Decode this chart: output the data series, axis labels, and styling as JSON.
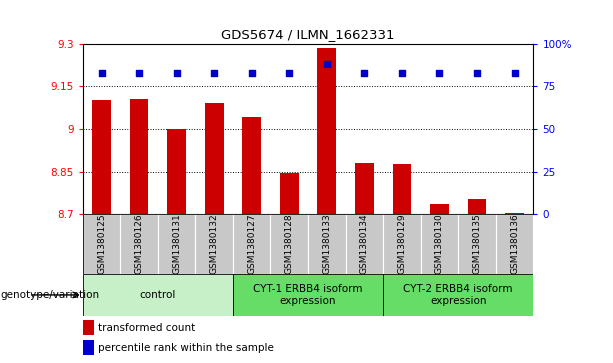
{
  "title": "GDS5674 / ILMN_1662331",
  "samples": [
    "GSM1380125",
    "GSM1380126",
    "GSM1380131",
    "GSM1380132",
    "GSM1380127",
    "GSM1380128",
    "GSM1380133",
    "GSM1380134",
    "GSM1380129",
    "GSM1380130",
    "GSM1380135",
    "GSM1380136"
  ],
  "bar_values": [
    9.1,
    9.105,
    9.0,
    9.09,
    9.04,
    8.845,
    9.285,
    8.88,
    8.875,
    8.735,
    8.755,
    8.705
  ],
  "percentile_values": [
    83,
    83,
    83,
    83,
    83,
    83,
    88,
    83,
    83,
    83,
    83,
    83
  ],
  "ymin": 8.7,
  "ymax": 9.3,
  "yticks": [
    8.7,
    8.85,
    9.0,
    9.15,
    9.3
  ],
  "ytick_labels": [
    "8.7",
    "8.85",
    "9",
    "9.15",
    "9.3"
  ],
  "right_yticks": [
    0,
    25,
    50,
    75,
    100
  ],
  "right_ytick_labels": [
    "0",
    "25",
    "50",
    "75",
    "100%"
  ],
  "bar_color": "#cc0000",
  "percentile_color": "#0000cc",
  "grid_color": "#000000",
  "background_color": "#ffffff",
  "tick_area_color": "#c8c8c8",
  "groups": [
    {
      "label": "control",
      "start": 0,
      "end": 3,
      "color": "#c8f0c8"
    },
    {
      "label": "CYT-1 ERBB4 isoform\nexpression",
      "start": 4,
      "end": 7,
      "color": "#66dd66"
    },
    {
      "label": "CYT-2 ERBB4 isoform\nexpression",
      "start": 8,
      "end": 11,
      "color": "#66dd66"
    }
  ],
  "legend_items": [
    {
      "label": "transformed count",
      "color": "#cc0000"
    },
    {
      "label": "percentile rank within the sample",
      "color": "#0000cc"
    }
  ],
  "xlabel_left": "genotype/variation"
}
